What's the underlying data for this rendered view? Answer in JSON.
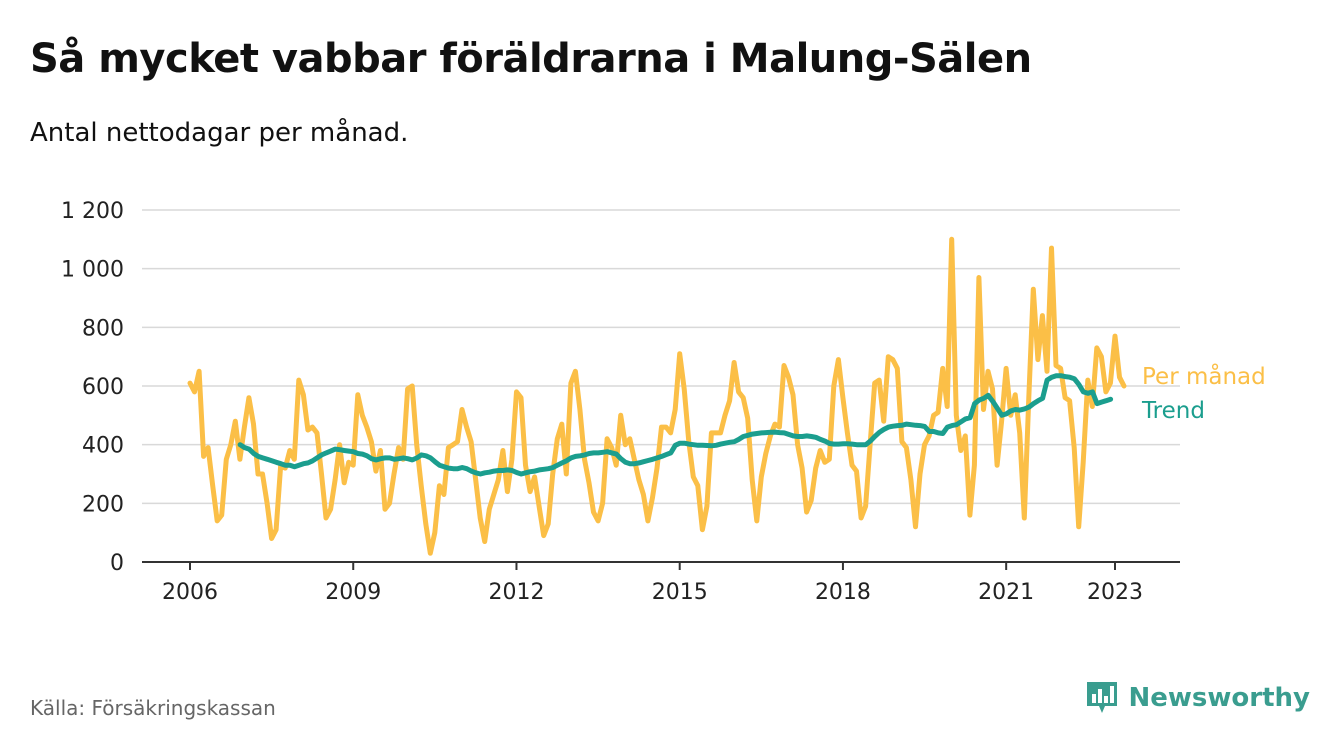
{
  "title": "Så mycket vabbar föräldrarna i Malung-Sälen",
  "subtitle": "Antal nettodagar per månad.",
  "source": "Källa: Försäkringskassan",
  "brand": {
    "name": "Newsworthy",
    "icon": "bar-chart-logo-icon",
    "color": "#3a9d8f"
  },
  "chart_data": {
    "type": "line",
    "y_ticks": [
      0,
      200,
      400,
      600,
      800,
      1000,
      1200
    ],
    "y_tick_labels": [
      "0",
      "200",
      "400",
      "600",
      "800",
      "1 000",
      "1 200"
    ],
    "x_ticks": [
      2006,
      2009,
      2012,
      2015,
      2018,
      2021,
      2023
    ],
    "x_tick_labels": [
      "2006",
      "2009",
      "2012",
      "2015",
      "2018",
      "2021",
      "2023"
    ],
    "ylim": [
      0,
      1200
    ],
    "xlim": [
      2005.0,
      2024.0
    ],
    "grid": true,
    "legend_placement": "right, at line ends",
    "series": [
      {
        "name": "Per månad",
        "color": "#fbbf47",
        "x_start": 2006.0,
        "x_step": 0.08333,
        "values": [
          610,
          580,
          650,
          360,
          390,
          260,
          140,
          160,
          350,
          400,
          480,
          350,
          460,
          560,
          470,
          300,
          300,
          200,
          80,
          110,
          330,
          320,
          380,
          350,
          620,
          570,
          450,
          460,
          440,
          300,
          150,
          180,
          280,
          400,
          270,
          340,
          330,
          570,
          500,
          460,
          410,
          310,
          380,
          180,
          200,
          300,
          390,
          350,
          590,
          600,
          400,
          260,
          130,
          30,
          100,
          260,
          230,
          390,
          400,
          410,
          520,
          460,
          410,
          280,
          150,
          70,
          180,
          230,
          280,
          380,
          240,
          350,
          580,
          560,
          330,
          240,
          290,
          190,
          90,
          130,
          300,
          420,
          470,
          300,
          610,
          650,
          520,
          350,
          270,
          170,
          140,
          200,
          420,
          390,
          330,
          500,
          400,
          420,
          350,
          280,
          230,
          140,
          220,
          320,
          460,
          460,
          440,
          520,
          710,
          590,
          410,
          290,
          260,
          110,
          190,
          440,
          440,
          440,
          500,
          550,
          680,
          580,
          560,
          490,
          280,
          140,
          290,
          370,
          430,
          470,
          460,
          670,
          630,
          570,
          400,
          320,
          170,
          210,
          320,
          380,
          340,
          350,
          600,
          690,
          560,
          440,
          330,
          310,
          150,
          190,
          400,
          610,
          620,
          480,
          700,
          690,
          660,
          410,
          390,
          280,
          120,
          300,
          400,
          430,
          500,
          510,
          660,
          530,
          1100,
          500,
          380,
          430,
          160,
          330,
          970,
          520,
          650,
          590,
          330,
          480,
          660,
          500,
          570,
          440,
          150,
          560,
          930,
          690,
          840,
          650,
          1070,
          670,
          660,
          560,
          550,
          390,
          120,
          340,
          620,
          530,
          730,
          700,
          580,
          610,
          770,
          630,
          600
        ]
      },
      {
        "name": "Trend",
        "color": "#1b9e8e",
        "x_start": 2006.92,
        "x_step": 0.08333,
        "values": [
          400,
          390,
          385,
          370,
          360,
          355,
          350,
          345,
          340,
          335,
          330,
          330,
          325,
          330,
          335,
          338,
          345,
          355,
          365,
          372,
          378,
          385,
          383,
          380,
          378,
          376,
          370,
          368,
          362,
          352,
          348,
          352,
          355,
          355,
          350,
          352,
          355,
          352,
          348,
          355,
          365,
          362,
          355,
          342,
          330,
          325,
          320,
          318,
          318,
          322,
          318,
          310,
          304,
          300,
          304,
          306,
          310,
          312,
          312,
          314,
          312,
          305,
          300,
          304,
          308,
          310,
          314,
          316,
          318,
          322,
          330,
          338,
          345,
          355,
          360,
          362,
          365,
          370,
          372,
          372,
          374,
          376,
          372,
          368,
          352,
          340,
          335,
          335,
          338,
          342,
          346,
          350,
          355,
          360,
          366,
          372,
          398,
          405,
          405,
          402,
          400,
          398,
          398,
          397,
          396,
          398,
          402,
          405,
          408,
          410,
          418,
          428,
          432,
          436,
          438,
          440,
          441,
          442,
          443,
          441,
          440,
          435,
          430,
          428,
          428,
          430,
          428,
          425,
          418,
          412,
          404,
          402,
          402,
          403,
          403,
          402,
          400,
          400,
          400,
          412,
          428,
          442,
          452,
          460,
          463,
          465,
          466,
          470,
          468,
          466,
          465,
          462,
          445,
          445,
          440,
          438,
          460,
          465,
          468,
          478,
          488,
          492,
          540,
          552,
          558,
          568,
          548,
          524,
          500,
          505,
          515,
          520,
          518,
          522,
          528,
          540,
          550,
          558,
          620,
          630,
          635,
          635,
          632,
          630,
          625,
          605,
          580,
          575,
          580,
          540,
          545,
          550,
          555
        ]
      }
    ]
  }
}
